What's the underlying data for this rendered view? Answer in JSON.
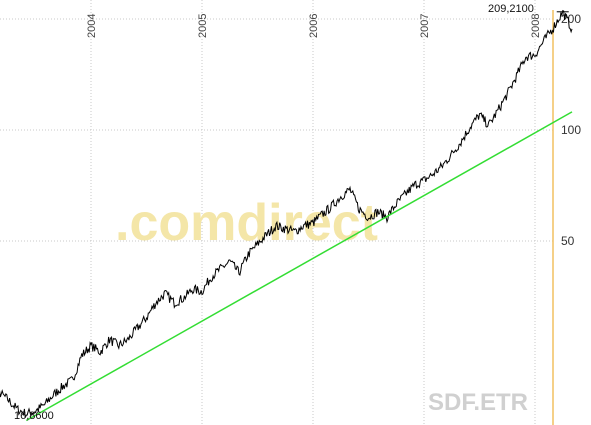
{
  "chart_data": {
    "type": "line",
    "title": "",
    "xlabel": "",
    "ylabel": "",
    "y_scale": "log",
    "x_ticks": [
      "2004",
      "2005",
      "2006",
      "2007",
      "2008"
    ],
    "y_ticks": [
      200,
      100,
      50
    ],
    "xlim": [
      "2003-01",
      "2008-05"
    ],
    "ylim": [
      16,
      220
    ],
    "grid": true,
    "watermark": ".comdirect",
    "symbol": "SDF.ETR",
    "annotations": {
      "high": "209,2100",
      "low": "16,8600"
    },
    "series": [
      {
        "name": "",
        "color": "#000000",
        "points": [
          [
            "2003-01",
            16.9
          ],
          [
            "2003-02",
            17.8
          ],
          [
            "2003-03",
            19.5
          ],
          [
            "2003-04",
            18.6
          ],
          [
            "2003-05",
            17.5
          ],
          [
            "2003-06",
            17.0
          ],
          [
            "2003-07",
            17.3
          ],
          [
            "2003-08",
            18.0
          ],
          [
            "2003-09",
            19.2
          ],
          [
            "2003-10",
            20.2
          ],
          [
            "2003-11",
            21.0
          ],
          [
            "2003-12",
            24.5
          ],
          [
            "2004-01",
            26.0
          ],
          [
            "2004-02",
            25.0
          ],
          [
            "2004-03",
            27.0
          ],
          [
            "2004-04",
            26.0
          ],
          [
            "2004-05",
            27.0
          ],
          [
            "2004-06",
            29.0
          ],
          [
            "2004-07",
            31.0
          ],
          [
            "2004-08",
            34.0
          ],
          [
            "2004-09",
            36.0
          ],
          [
            "2004-10",
            34.0
          ],
          [
            "2004-11",
            35.0
          ],
          [
            "2004-12",
            37.0
          ],
          [
            "2005-01",
            36.5
          ],
          [
            "2005-02",
            40.0
          ],
          [
            "2005-03",
            42.0
          ],
          [
            "2005-04",
            44.0
          ],
          [
            "2005-05",
            41.0
          ],
          [
            "2005-06",
            46.0
          ],
          [
            "2005-07",
            49.0
          ],
          [
            "2005-08",
            52.0
          ],
          [
            "2005-09",
            55.0
          ],
          [
            "2005-10",
            54.0
          ],
          [
            "2005-11",
            53.0
          ],
          [
            "2005-12",
            55.0
          ],
          [
            "2006-01",
            56.0
          ],
          [
            "2006-02",
            59.0
          ],
          [
            "2006-03",
            62.0
          ],
          [
            "2006-04",
            66.0
          ],
          [
            "2006-05",
            69.0
          ],
          [
            "2006-06",
            61.0
          ],
          [
            "2006-07",
            58.0
          ],
          [
            "2006-08",
            60.0
          ],
          [
            "2006-09",
            58.0
          ],
          [
            "2006-10",
            63.0
          ],
          [
            "2006-11",
            67.0
          ],
          [
            "2006-12",
            71.0
          ],
          [
            "2007-01",
            73.0
          ],
          [
            "2007-02",
            76.0
          ],
          [
            "2007-03",
            80.0
          ],
          [
            "2007-04",
            86.0
          ],
          [
            "2007-05",
            93.0
          ],
          [
            "2007-06",
            102.0
          ],
          [
            "2007-07",
            110.0
          ],
          [
            "2007-08",
            103.0
          ],
          [
            "2007-09",
            113.0
          ],
          [
            "2007-10",
            125.0
          ],
          [
            "2007-11",
            140.0
          ],
          [
            "2007-12",
            158.0
          ],
          [
            "2008-01",
            160.0
          ],
          [
            "2008-02",
            175.0
          ],
          [
            "2008-03",
            190.0
          ],
          [
            "2008-04",
            209.21
          ],
          [
            "2008-05",
            188.0
          ]
        ]
      },
      {
        "name": "",
        "color": "#33dd33",
        "points": [
          [
            "2003-06",
            16.3
          ],
          [
            "2008-05",
            112.0
          ]
        ]
      }
    ]
  }
}
